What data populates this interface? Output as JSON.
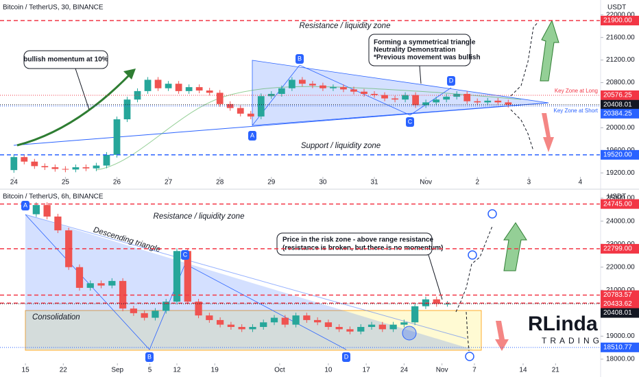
{
  "chart_data": [
    {
      "type": "candlestick",
      "title": "Bitcoin / TetherUS, 30, BINANCE",
      "y_axis_label": "USDT",
      "up_color": "#26a69a",
      "down_color": "#ef5350",
      "x": [
        -0.2,
        0,
        0.2,
        0.4,
        0.6,
        0.8,
        1.0,
        1.2,
        1.4,
        1.6,
        1.8,
        2.0,
        2.2,
        2.4,
        2.6,
        2.8,
        3.0,
        3.2,
        3.4,
        3.6,
        3.8,
        4.0,
        4.2,
        4.4,
        4.6,
        4.8,
        5.0,
        5.2,
        5.4,
        5.6,
        5.8,
        6.0,
        6.2,
        6.4,
        6.6,
        6.8,
        7.0,
        7.2,
        7.4,
        7.6,
        7.8,
        8.0,
        8.2,
        8.4,
        8.6,
        8.8,
        9.0,
        9.2,
        9.4,
        9.6
      ],
      "values": [
        19250,
        19480,
        19400,
        19320,
        19300,
        19270,
        19260,
        19300,
        19280,
        19330,
        19520,
        20150,
        20500,
        20650,
        20850,
        20700,
        20780,
        20650,
        20720,
        20660,
        20620,
        20420,
        20350,
        20250,
        20200,
        20560,
        20600,
        20700,
        20850,
        20780,
        20750,
        20700,
        20720,
        20680,
        20640,
        20600,
        20580,
        20520,
        20500,
        20580,
        20400,
        20450,
        20500,
        20550,
        20600,
        20470,
        20450,
        20480,
        20450,
        20408.01
      ],
      "xlim": [
        -0.27,
        11.38
      ],
      "xticks": [
        {
          "value": 0,
          "label": "24"
        },
        {
          "value": 1,
          "label": "25"
        },
        {
          "value": 2,
          "label": "26"
        },
        {
          "value": 3,
          "label": "27"
        },
        {
          "value": 4,
          "label": "28"
        },
        {
          "value": 5,
          "label": "29"
        },
        {
          "value": 6,
          "label": "30"
        },
        {
          "value": 7,
          "label": "31"
        },
        {
          "value": 8,
          "label": "Nov"
        },
        {
          "value": 9,
          "label": "2"
        },
        {
          "value": 10,
          "label": "3"
        },
        {
          "value": 11,
          "label": "4"
        }
      ],
      "ylim": [
        19130,
        22240
      ],
      "yticks": [
        {
          "value": 19200,
          "label": "19200.00"
        },
        {
          "value": 19600,
          "label": "19600.00"
        },
        {
          "value": 20000,
          "label": "20000.00"
        },
        {
          "value": 20400,
          "label": "20400.00"
        },
        {
          "value": 20800,
          "label": "20800.00"
        },
        {
          "value": 21200,
          "label": "21200.00"
        },
        {
          "value": 21600,
          "label": "21600.00"
        },
        {
          "value": 22000,
          "label": "22000.00"
        }
      ],
      "levels": [
        {
          "value": 21900,
          "label": "21900.00",
          "color": "#f23645",
          "line_style": "dashed"
        },
        {
          "value": 20576.25,
          "label": "20576.25",
          "color": "#f23645",
          "line_style": "dotted",
          "name": "Key Zone at Long"
        },
        {
          "value": 20408.01,
          "label": "20408.01",
          "color": "#131722",
          "line_style": "dotted"
        },
        {
          "value": 20384.25,
          "label": "20384.25",
          "color": "#2962ff",
          "line_style": "dotted",
          "name": "Key Zone at Short"
        },
        {
          "value": 19520,
          "label": "19520.00",
          "color": "#2962ff",
          "line_style": "dashed"
        }
      ],
      "annotations": [
        "Resistance / liquidity zone",
        "Support / liquidity zone",
        "bullish momentum at 10%",
        "Forming a symmetrical triangle",
        "Neutrality Demonstration",
        "*Previous movement was bullish"
      ],
      "points": [
        "A",
        "B",
        "C",
        "D"
      ]
    },
    {
      "type": "candlestick",
      "title": "Bitcoin / TetherUS, 6h, BINANCE",
      "y_axis_label": "USDT",
      "up_color": "#26a69a",
      "down_color": "#ef5350",
      "x": [
        0,
        2,
        4,
        6,
        8,
        10,
        12,
        14,
        16,
        18,
        20,
        22,
        24,
        26,
        28,
        30,
        32,
        34,
        36,
        38,
        40,
        42,
        44,
        46,
        48,
        50,
        52,
        54,
        56,
        58,
        60,
        62,
        64,
        66,
        68,
        70,
        72,
        74,
        76,
        78
      ],
      "values": [
        24300,
        24700,
        24200,
        23600,
        22000,
        21100,
        21300,
        21200,
        21400,
        20200,
        20000,
        19800,
        20100,
        20500,
        22700,
        20500,
        19900,
        19700,
        19500,
        19400,
        19300,
        19400,
        19600,
        19800,
        19500,
        19900,
        19700,
        19600,
        19400,
        19300,
        19200,
        19400,
        19500,
        19300,
        19500,
        19600,
        20300,
        20600,
        20400,
        20408.01
      ],
      "xlim": [
        -4.7,
        106.2
      ],
      "xticks": [
        {
          "value": 0,
          "label": "15"
        },
        {
          "value": 7,
          "label": "22"
        },
        {
          "value": 17,
          "label": "Sep"
        },
        {
          "value": 23,
          "label": "5"
        },
        {
          "value": 28,
          "label": "12"
        },
        {
          "value": 35,
          "label": "19"
        },
        {
          "value": 47,
          "label": "Oct"
        },
        {
          "value": 56,
          "label": "10"
        },
        {
          "value": 63,
          "label": "17"
        },
        {
          "value": 70,
          "label": "24"
        },
        {
          "value": 77,
          "label": "Nov"
        },
        {
          "value": 83,
          "label": "7"
        },
        {
          "value": 92,
          "label": "14"
        },
        {
          "value": 98,
          "label": "21"
        }
      ],
      "ylim": [
        17820,
        25330
      ],
      "yticks": [
        {
          "value": 18000,
          "label": "18000.00"
        },
        {
          "value": 19000,
          "label": "19000.00"
        },
        {
          "value": 20000,
          "label": "20000.00"
        },
        {
          "value": 21000,
          "label": "21000.00"
        },
        {
          "value": 22000,
          "label": "22000.00"
        },
        {
          "value": 23000,
          "label": "23000.00"
        },
        {
          "value": 24000,
          "label": "24000.00"
        },
        {
          "value": 25000,
          "label": "25000.00"
        }
      ],
      "levels": [
        {
          "value": 24745,
          "label": "24745.00",
          "color": "#f23645",
          "line_style": "dashed"
        },
        {
          "value": 22799,
          "label": "22799.00",
          "color": "#f23645",
          "line_style": "dashed"
        },
        {
          "value": 20783.57,
          "label": "20783.57",
          "color": "#f23645",
          "line_style": "dashed"
        },
        {
          "value": 20433.62,
          "label": "20433.62",
          "color": "#f23645",
          "line_style": "dashed"
        },
        {
          "value": 20408.01,
          "label": "20408.01",
          "color": "#131722",
          "line_style": "dotted"
        },
        {
          "value": 18510.77,
          "label": "18510.77",
          "color": "#2962ff",
          "line_style": "dotted"
        }
      ],
      "annotations": [
        "Resistance / liquidity zone",
        "Descending triangle",
        "Consolidation",
        "Price in the risk zone - above range resistance",
        "(resistance is broken, but there is no momentum)"
      ],
      "points": [
        "A",
        "B",
        "C",
        "D"
      ],
      "watermark": [
        "RLinda",
        "TRADING"
      ]
    }
  ]
}
